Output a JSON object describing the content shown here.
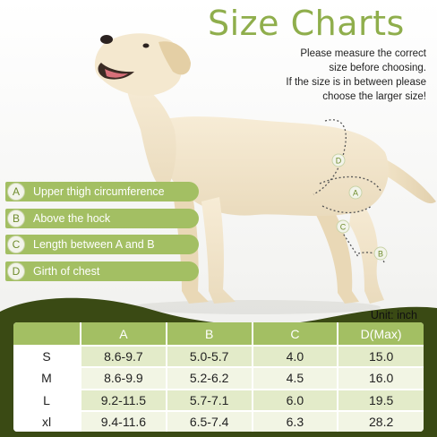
{
  "title": "Size Charts",
  "intro_lines": [
    "Please measure the correct",
    "size before choosing.",
    "If the size is in between please",
    "choose the larger size!"
  ],
  "diagram_markers": [
    "D",
    "A",
    "C",
    "B"
  ],
  "legend": [
    {
      "badge": "A",
      "label": "Upper thigh circumference"
    },
    {
      "badge": "B",
      "label": "Above the hock"
    },
    {
      "badge": "C",
      "label": "Length between A and B"
    },
    {
      "badge": "D",
      "label": "Girth of chest"
    }
  ],
  "unit_label": "Unit: inch",
  "table": {
    "columns": [
      "",
      "A",
      "B",
      "C",
      "D(Max)"
    ],
    "rows": [
      {
        "size": "S",
        "a": "8.6-9.7",
        "b": "5.0-5.7",
        "c": "4.0",
        "d": "15.0"
      },
      {
        "size": "M",
        "a": "8.6-9.9",
        "b": "5.2-6.2",
        "c": "4.5",
        "d": "16.0"
      },
      {
        "size": "L",
        "a": "9.2-11.5",
        "b": "5.7-7.1",
        "c": "6.0",
        "d": "19.5"
      },
      {
        "size": "xl",
        "a": "9.4-11.6",
        "b": "6.5-7.4",
        "c": "6.3",
        "d": "28.2"
      }
    ]
  },
  "colors": {
    "accent_green": "#a3bf63",
    "title_green": "#8fae4c",
    "dark_olive": "#3a4a14",
    "row_light": "#e3ebc9",
    "row_lighter": "#f2f5e4"
  },
  "illustration": "dog-photo"
}
